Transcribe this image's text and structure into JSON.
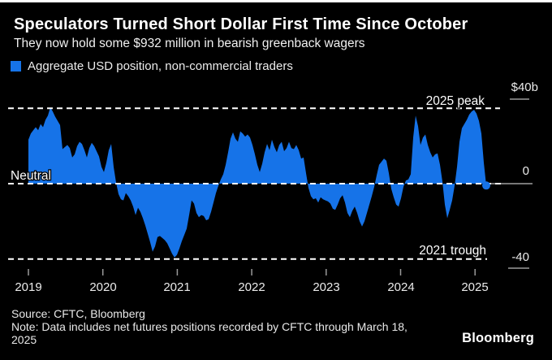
{
  "header": {
    "title": "Speculators Turned Short Dollar First Time Since October",
    "subtitle": "They now hold some $932 million in bearish greenback wagers"
  },
  "legend": {
    "label": "Aggregate USD position, non-commercial traders",
    "swatch_color": "#1673e8"
  },
  "chart_data": {
    "type": "area",
    "series_name": "Aggregate USD position, non-commercial traders",
    "unit": "USD billions",
    "x_start": 2019.0,
    "x_end": 2025.15,
    "ylim": [
      -45,
      45
    ],
    "area_color": "#1673e8",
    "values": [
      21,
      24,
      25.5,
      27,
      25.5,
      28.5,
      27,
      30.5,
      32.5,
      36.5,
      34.5,
      32,
      30,
      28,
      16.5,
      17.5,
      18.5,
      17,
      12.5,
      14,
      18,
      20,
      19,
      16,
      12.5,
      17,
      19.5,
      18,
      15.5,
      13,
      8,
      5.5,
      10,
      16,
      19,
      8,
      0.5,
      -5,
      -7.5,
      -8,
      -4.5,
      -6,
      -8,
      -11,
      -15,
      -11.5,
      -13.5,
      -16.5,
      -20,
      -24,
      -28,
      -32.5,
      -30,
      -25.5,
      -25,
      -26,
      -27,
      -28.5,
      -31,
      -33.5,
      -35.3,
      -34,
      -31,
      -27.5,
      -24.5,
      -21.5,
      -15,
      -8,
      -9.5,
      -14,
      -16,
      -15,
      -15.5,
      -17.5,
      -17,
      -13.5,
      -9,
      -4.5,
      -1,
      2,
      4.5,
      9,
      15,
      21.5,
      24.5,
      21.5,
      20,
      25,
      24,
      22.5,
      23.5,
      22,
      18.5,
      14,
      9,
      5.5,
      9.5,
      15,
      19,
      16,
      21,
      17.5,
      15,
      18.5,
      20,
      15.5,
      17,
      20,
      17,
      16.5,
      18.5,
      16,
      12,
      12.5,
      5,
      -2,
      -6,
      -7.5,
      -7,
      -9,
      -6.5,
      -7.5,
      -8,
      -8.5,
      -9.5,
      -12,
      -12.5,
      -10,
      -7,
      -5.5,
      -9,
      -14,
      -16,
      -13,
      -11,
      -14,
      -18,
      -20.5,
      -18,
      -14,
      -10,
      -6,
      -1.5,
      4,
      9,
      10.5,
      12,
      11,
      5,
      -2.5,
      -6.5,
      -10,
      -11,
      -7,
      -1.5,
      1.5,
      2,
      4.5,
      22,
      32.5,
      27.5,
      18.5,
      22,
      23.5,
      18.5,
      15,
      12.5,
      14,
      14.5,
      9,
      1,
      -10,
      -16.5,
      -12.5,
      -8,
      -1,
      8,
      20,
      26.5,
      28.5,
      30.5,
      33,
      34.5,
      35.3,
      33.5,
      30,
      24,
      10,
      -0.9
    ],
    "end_point_value": -0.9,
    "y_axis": {
      "side": "right",
      "ticks": [
        {
          "label": "$40b",
          "value": 40
        },
        {
          "label": "0",
          "value": 0
        },
        {
          "label": "-40",
          "value": -40
        }
      ]
    },
    "x_axis": {
      "ticks": [
        "2019",
        "2020",
        "2021",
        "2022",
        "2023",
        "2024",
        "2025"
      ]
    },
    "annotations": [
      {
        "label": "2025 peak",
        "value": 36,
        "align": "right"
      },
      {
        "label": "Neutral",
        "value": 0,
        "align": "left"
      },
      {
        "label": "2021 trough",
        "value": -36,
        "align": "right"
      }
    ]
  },
  "footer": {
    "source": "Source: CFTC, Bloomberg",
    "note": "Note: Data includes net futures positions recorded by CFTC through March 18, 2025",
    "logo": "Bloomberg"
  }
}
